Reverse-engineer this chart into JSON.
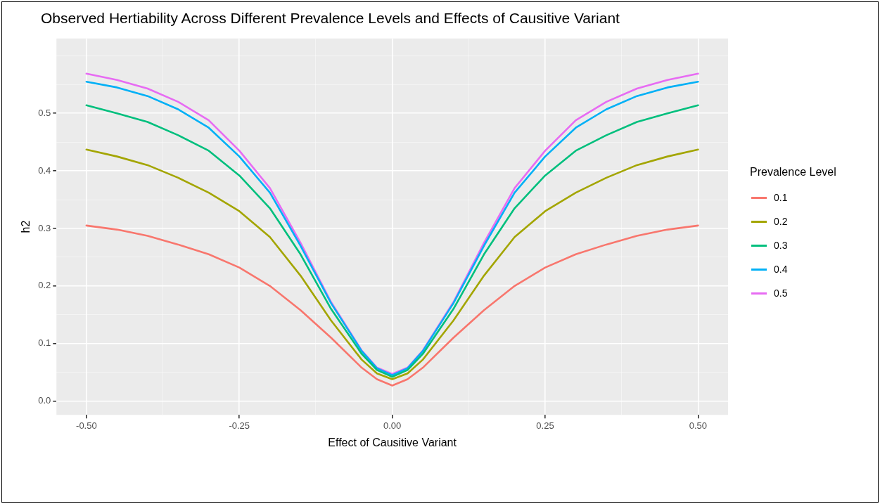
{
  "chart_data": {
    "type": "line",
    "title": "Observed Hertiability Across Different Prevalence Levels and Effects of Causitive Variant",
    "xlabel": "Effect of Causitive Variant",
    "ylabel": "h2",
    "legend_title": "Prevalence Level",
    "x": [
      -0.5,
      -0.45,
      -0.4,
      -0.35,
      -0.3,
      -0.25,
      -0.2,
      -0.15,
      -0.1,
      -0.05,
      -0.025,
      0,
      0.025,
      0.05,
      0.1,
      0.15,
      0.2,
      0.25,
      0.3,
      0.35,
      0.4,
      0.45,
      0.5
    ],
    "series": [
      {
        "name": "0.1",
        "color": "#f8766d",
        "values": [
          0.305,
          0.298,
          0.287,
          0.272,
          0.255,
          0.232,
          0.2,
          0.158,
          0.11,
          0.058,
          0.038,
          0.027,
          0.038,
          0.058,
          0.11,
          0.158,
          0.2,
          0.232,
          0.255,
          0.272,
          0.287,
          0.298,
          0.305
        ]
      },
      {
        "name": "0.2",
        "color": "#a3a500",
        "values": [
          0.437,
          0.425,
          0.41,
          0.388,
          0.362,
          0.33,
          0.285,
          0.218,
          0.14,
          0.072,
          0.048,
          0.038,
          0.048,
          0.072,
          0.14,
          0.218,
          0.285,
          0.33,
          0.362,
          0.388,
          0.41,
          0.425,
          0.437
        ]
      },
      {
        "name": "0.3",
        "color": "#00bf7d",
        "values": [
          0.514,
          0.5,
          0.485,
          0.462,
          0.435,
          0.392,
          0.335,
          0.255,
          0.16,
          0.082,
          0.054,
          0.042,
          0.054,
          0.082,
          0.16,
          0.255,
          0.335,
          0.392,
          0.435,
          0.462,
          0.485,
          0.5,
          0.514
        ]
      },
      {
        "name": "0.4",
        "color": "#00b0f6",
        "values": [
          0.555,
          0.545,
          0.53,
          0.507,
          0.475,
          0.425,
          0.362,
          0.27,
          0.17,
          0.087,
          0.057,
          0.045,
          0.057,
          0.087,
          0.17,
          0.27,
          0.362,
          0.425,
          0.475,
          0.507,
          0.53,
          0.545,
          0.555
        ]
      },
      {
        "name": "0.5",
        "color": "#e76bf3",
        "values": [
          0.569,
          0.558,
          0.543,
          0.52,
          0.488,
          0.435,
          0.37,
          0.275,
          0.172,
          0.088,
          0.058,
          0.047,
          0.058,
          0.088,
          0.172,
          0.275,
          0.37,
          0.435,
          0.488,
          0.52,
          0.543,
          0.558,
          0.569
        ]
      }
    ],
    "xlim": [
      -0.549,
      0.549
    ],
    "ylim": [
      -0.024,
      0.63
    ],
    "xticks": [
      {
        "value": -0.5,
        "label": "-0.50"
      },
      {
        "value": -0.375,
        "label": null
      },
      {
        "value": -0.25,
        "label": "-0.25"
      },
      {
        "value": -0.125,
        "label": null
      },
      {
        "value": 0,
        "label": "0.00"
      },
      {
        "value": 0.125,
        "label": null
      },
      {
        "value": 0.25,
        "label": "0.25"
      },
      {
        "value": 0.375,
        "label": null
      },
      {
        "value": 0.5,
        "label": "0.50"
      }
    ],
    "yticks": [
      {
        "value": 0,
        "label": "0.0"
      },
      {
        "value": 0.05,
        "label": null
      },
      {
        "value": 0.1,
        "label": "0.1"
      },
      {
        "value": 0.15,
        "label": null
      },
      {
        "value": 0.2,
        "label": "0.2"
      },
      {
        "value": 0.25,
        "label": null
      },
      {
        "value": 0.3,
        "label": "0.3"
      },
      {
        "value": 0.35,
        "label": null
      },
      {
        "value": 0.4,
        "label": "0.4"
      },
      {
        "value": 0.45,
        "label": null
      },
      {
        "value": 0.5,
        "label": "0.5"
      },
      {
        "value": 0.55,
        "label": null
      },
      {
        "value": 0.6,
        "label": null
      }
    ],
    "grid": true,
    "legend": "right",
    "marker": "none",
    "line_style": "solid"
  }
}
